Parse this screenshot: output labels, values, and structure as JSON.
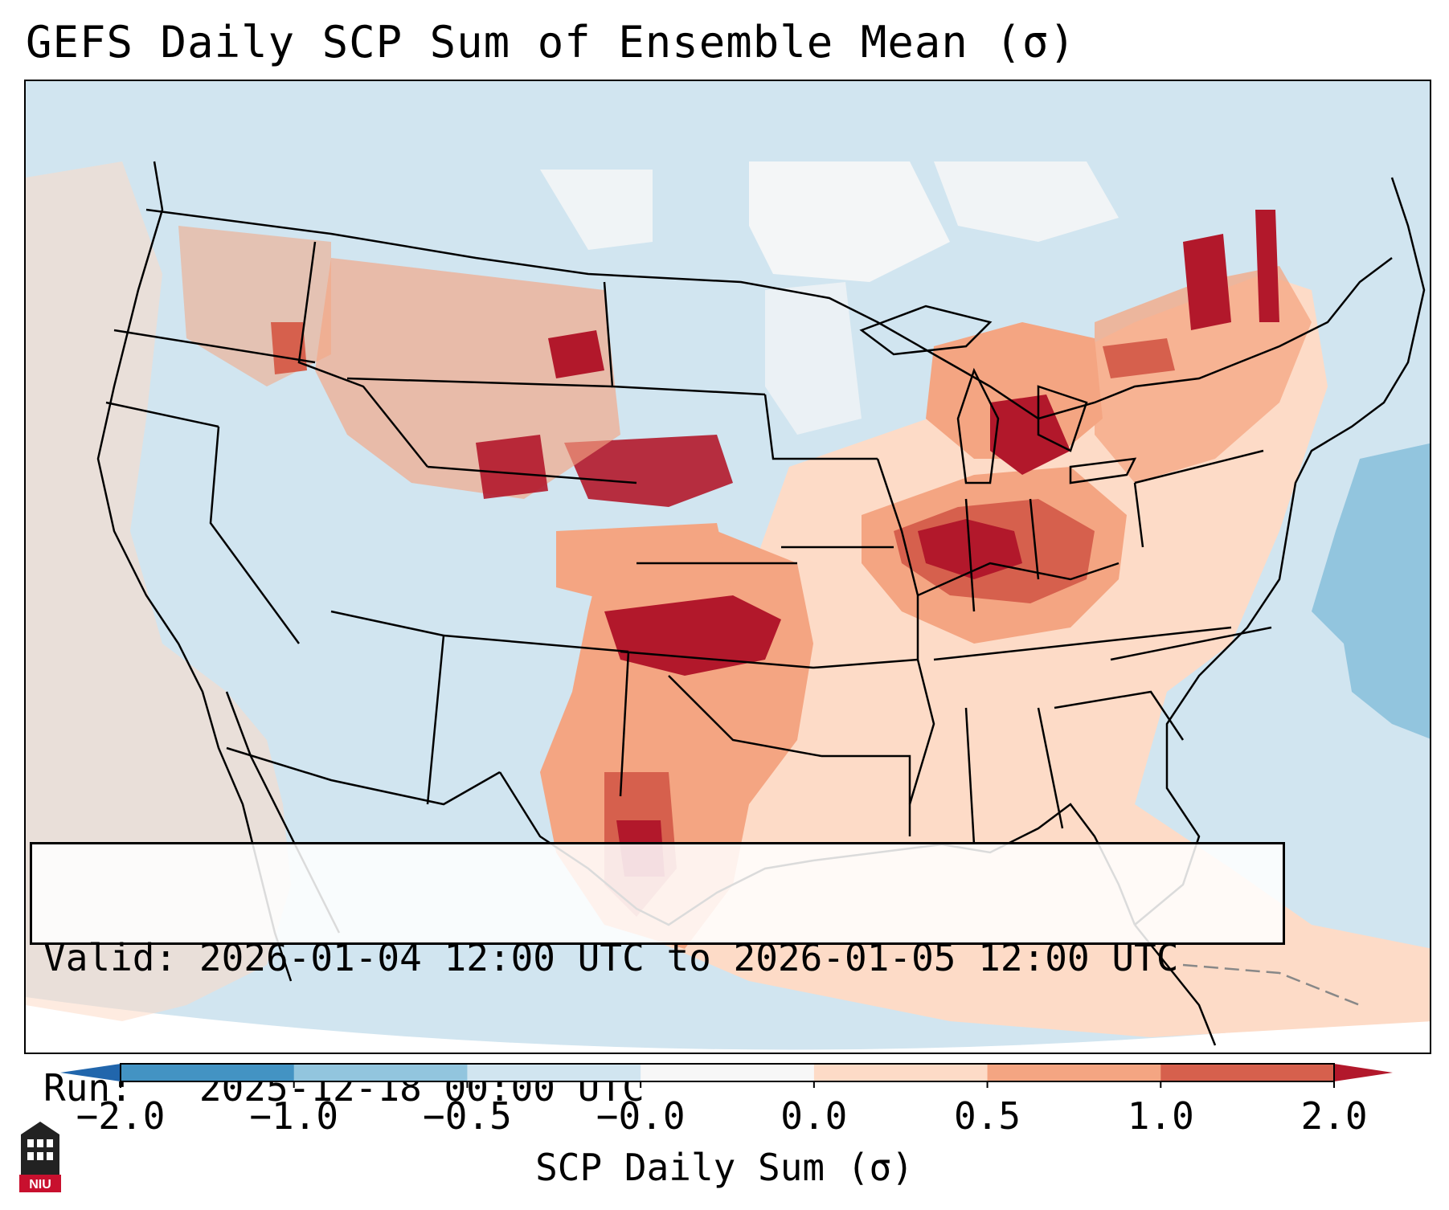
{
  "title": "GEFS Daily SCP Sum of Ensemble Mean (σ)",
  "info": {
    "valid_label": "Valid:",
    "valid_value": "2026-01-04 12:00 UTC to 2026-01-05 12:00 UTC",
    "run_label": "Run:",
    "run_value": "2025-12-18 00:00 UTC"
  },
  "colorbar": {
    "label": "SCP Daily Sum (σ)",
    "ticks": [
      "−2.0",
      "−1.0",
      "−0.5",
      "−0.0",
      "0.0",
      "0.5",
      "1.0",
      "2.0"
    ],
    "bins": [
      {
        "from": -2.0,
        "to": -1.0,
        "color": "#4393c3"
      },
      {
        "from": -1.0,
        "to": -0.5,
        "color": "#92c5de"
      },
      {
        "from": -0.5,
        "to": -0.0,
        "color": "#d1e5f0"
      },
      {
        "from": -0.0,
        "to": 0.0,
        "color": "#f7f7f7"
      },
      {
        "from": 0.0,
        "to": 0.5,
        "color": "#fddbc7"
      },
      {
        "from": 0.5,
        "to": 1.0,
        "color": "#f4a582"
      },
      {
        "from": 1.0,
        "to": 2.0,
        "color": "#d6604d"
      }
    ],
    "under_color": "#2166ac",
    "over_color": "#b2182b"
  },
  "logo": {
    "text": "NIU",
    "color": "#c8102e"
  },
  "map_colors": {
    "background": "#d1e5f0",
    "light_red": "#fddbc7",
    "medium_red": "#f4a582",
    "strong_red": "#d6604d",
    "dark_red": "#b2182b",
    "light_blue": "#92c5de",
    "white": "#f7f7f7"
  }
}
